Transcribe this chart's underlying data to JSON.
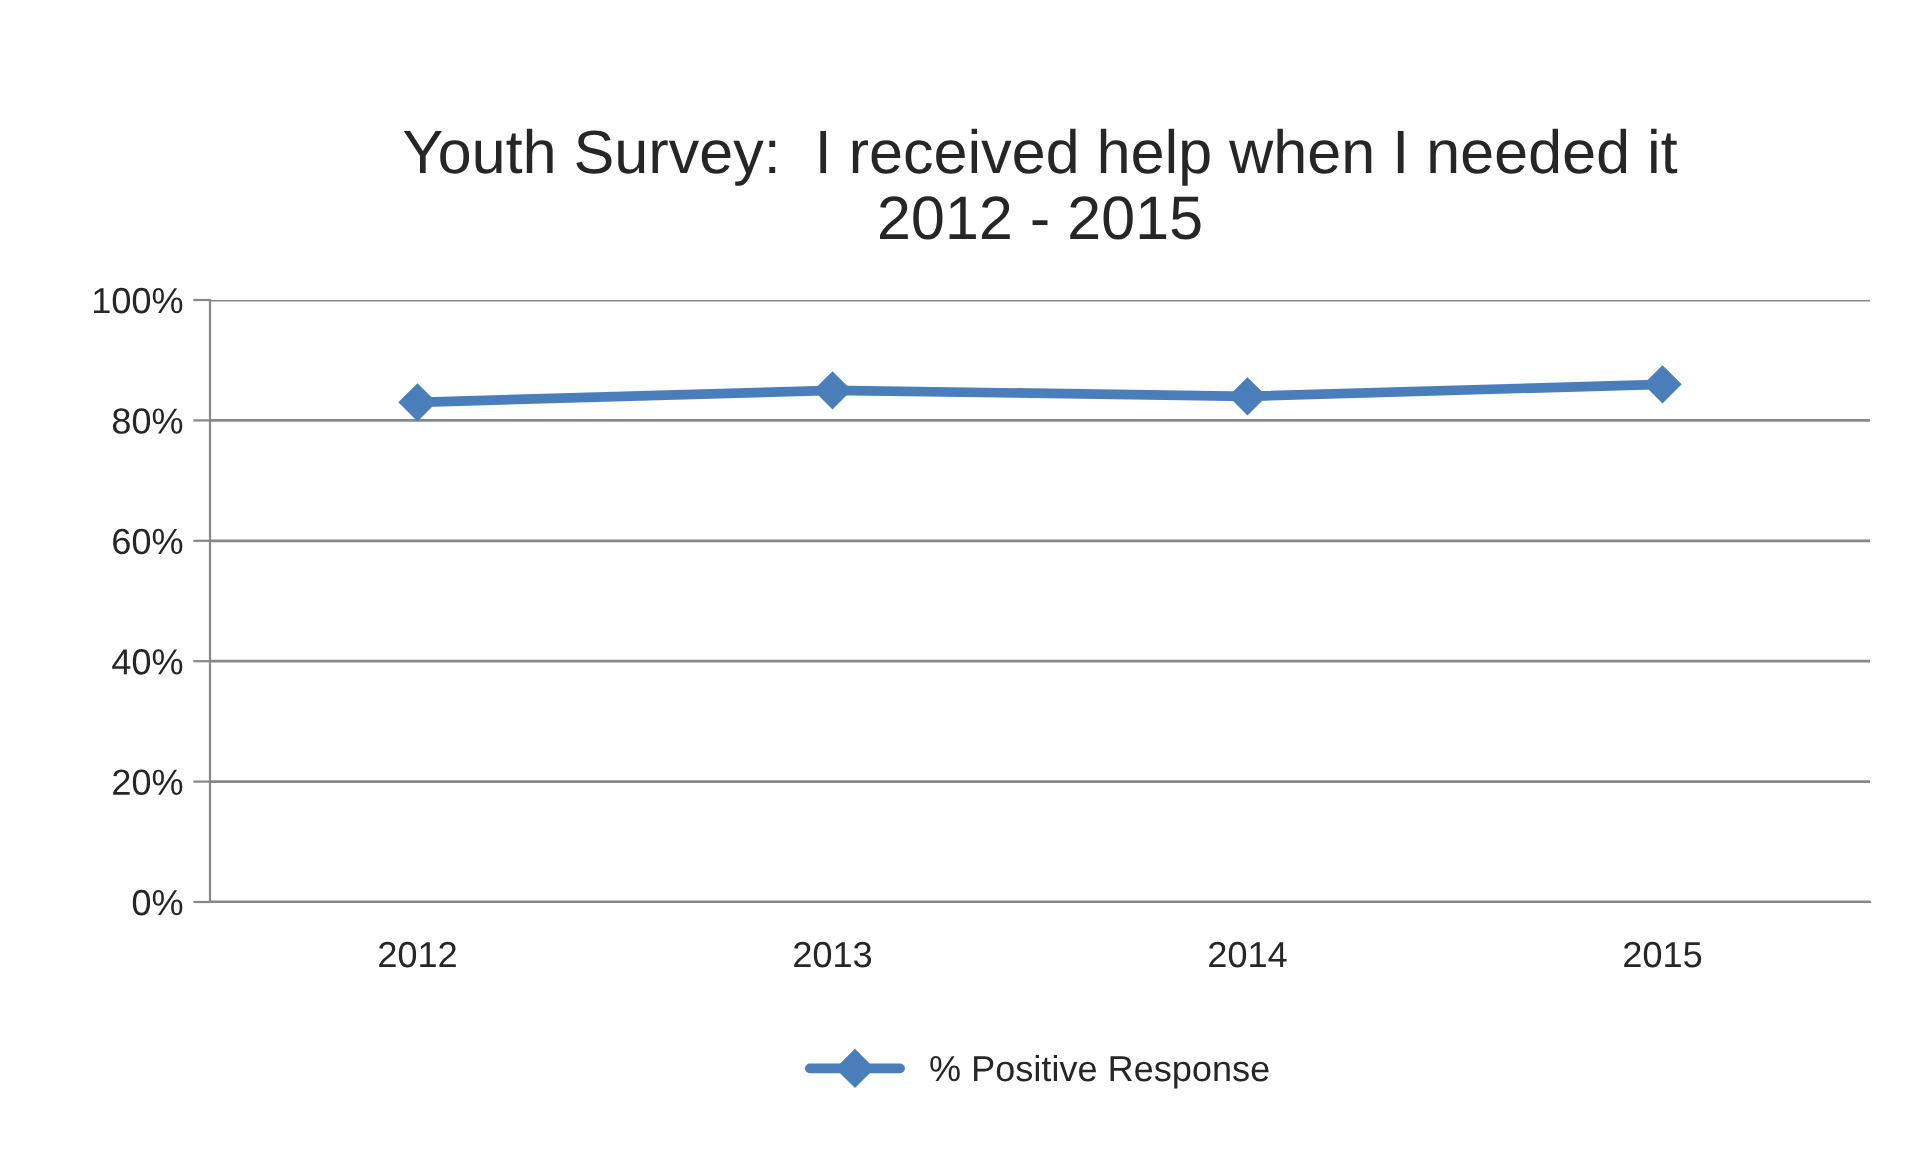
{
  "chart_data": {
    "type": "line",
    "title": "Youth Survey:  I received help when I needed it\n2012 - 2015",
    "categories": [
      "2012",
      "2013",
      "2014",
      "2015"
    ],
    "series": [
      {
        "name": "% Positive Response",
        "color": "#4a7ebb",
        "values": [
          83,
          85,
          84,
          86
        ]
      }
    ],
    "ylim": [
      0,
      100
    ],
    "yticks": [
      {
        "value": 0,
        "label": "0%"
      },
      {
        "value": 20,
        "label": "20%"
      },
      {
        "value": 40,
        "label": "40%"
      },
      {
        "value": 60,
        "label": "60%"
      },
      {
        "value": 80,
        "label": "80%"
      },
      {
        "value": 100,
        "label": "100%"
      }
    ],
    "grid": "y",
    "legend": "bottom",
    "marker": "diamond",
    "line_style": "solid"
  }
}
